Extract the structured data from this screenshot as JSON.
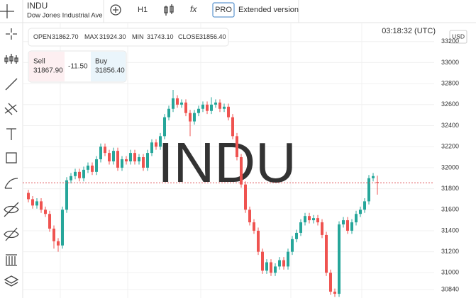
{
  "header": {
    "symbol": "INDU",
    "name": "Dow Jones Industrial Ave",
    "timeframe": "H1",
    "fx": "fx",
    "pro": "PRO",
    "extended": "Extended version"
  },
  "ohlc": {
    "open_label": "OPEN",
    "open": "31862.70",
    "max_label": "MAX",
    "max": "31924.30",
    "min_label": "MIN",
    "min": "31743.10",
    "close_label": "CLOSE",
    "close": "31856.40"
  },
  "trade": {
    "sell_label": "Sell",
    "sell": "31867.90",
    "spread": "-11.50",
    "buy_label": "Buy",
    "buy": "31856.40"
  },
  "clock": "03:18:32 (UTC)",
  "chart_data": {
    "type": "candlestick",
    "watermark": "INDU",
    "currency": "USD",
    "up_color": "#26a69a",
    "down_color": "#ef5350",
    "grid": true,
    "ylim": [
      30760,
      33380
    ],
    "yticks": [
      30840,
      31000,
      31200,
      31400,
      31600,
      31800,
      32000,
      32200,
      32400,
      32600,
      32800,
      33000,
      33200
    ],
    "candles": [
      [
        31760,
        31790,
        31670,
        31700
      ],
      [
        31700,
        31730,
        31610,
        31640
      ],
      [
        31640,
        31710,
        31610,
        31680
      ],
      [
        31680,
        31710,
        31570,
        31600
      ],
      [
        31600,
        31630,
        31530,
        31560
      ],
      [
        31560,
        31590,
        31390,
        31420
      ],
      [
        31420,
        31450,
        31230,
        31300
      ],
      [
        31300,
        31330,
        31200,
        31260
      ],
      [
        31260,
        31630,
        31230,
        31600
      ],
      [
        31600,
        31910,
        31570,
        31880
      ],
      [
        31880,
        31950,
        31850,
        31920
      ],
      [
        31920,
        31990,
        31890,
        31960
      ],
      [
        31960,
        31990,
        31870,
        31900
      ],
      [
        31900,
        32010,
        31870,
        31980
      ],
      [
        31980,
        32050,
        31950,
        32020
      ],
      [
        32020,
        32050,
        31930,
        31960
      ],
      [
        31960,
        32110,
        31930,
        32080
      ],
      [
        32080,
        32230,
        32050,
        32200
      ],
      [
        32200,
        32230,
        32110,
        32140
      ],
      [
        32140,
        32170,
        32030,
        32060
      ],
      [
        32060,
        32190,
        32030,
        32160
      ],
      [
        32160,
        32190,
        31970,
        32000
      ],
      [
        32000,
        32110,
        31970,
        32080
      ],
      [
        32080,
        32110,
        32030,
        32060
      ],
      [
        32060,
        32170,
        32030,
        32140
      ],
      [
        32140,
        32170,
        32030,
        32060
      ],
      [
        32060,
        32130,
        32030,
        32100
      ],
      [
        32100,
        32130,
        31970,
        32000
      ],
      [
        32000,
        32170,
        31970,
        32140
      ],
      [
        32140,
        32270,
        32110,
        32240
      ],
      [
        32240,
        32270,
        32170,
        32200
      ],
      [
        32200,
        32330,
        32170,
        32300
      ],
      [
        32300,
        32510,
        32270,
        32480
      ],
      [
        32480,
        32590,
        32450,
        32560
      ],
      [
        32560,
        32740,
        32530,
        32660
      ],
      [
        32660,
        32690,
        32570,
        32600
      ],
      [
        32600,
        32650,
        32570,
        32620
      ],
      [
        32620,
        32650,
        32490,
        32520
      ],
      [
        32520,
        32550,
        32300,
        32440
      ],
      [
        32440,
        32550,
        32410,
        32520
      ],
      [
        32520,
        32590,
        32490,
        32560
      ],
      [
        32560,
        32630,
        32530,
        32600
      ],
      [
        32600,
        32630,
        32510,
        32540
      ],
      [
        32540,
        32670,
        32510,
        32600
      ],
      [
        32600,
        32650,
        32570,
        32620
      ],
      [
        32620,
        32650,
        32530,
        32560
      ],
      [
        32560,
        32610,
        32530,
        32580
      ],
      [
        32580,
        32610,
        32450,
        32480
      ],
      [
        32480,
        32510,
        32270,
        32300
      ],
      [
        32300,
        32330,
        32070,
        32100
      ],
      [
        32100,
        32130,
        31810,
        31840
      ],
      [
        31840,
        31870,
        31570,
        31600
      ],
      [
        31600,
        31630,
        31450,
        31480
      ],
      [
        31480,
        31510,
        31370,
        31400
      ],
      [
        31400,
        31430,
        31170,
        31200
      ],
      [
        31200,
        31230,
        30990,
        31020
      ],
      [
        31020,
        31130,
        30990,
        31100
      ],
      [
        31100,
        31130,
        30970,
        31000
      ],
      [
        31000,
        31090,
        30970,
        31060
      ],
      [
        31060,
        31150,
        31030,
        31120
      ],
      [
        31120,
        31150,
        31030,
        31060
      ],
      [
        31060,
        31230,
        31030,
        31200
      ],
      [
        31200,
        31350,
        31170,
        31320
      ],
      [
        31320,
        31410,
        31290,
        31380
      ],
      [
        31380,
        31510,
        31350,
        31480
      ],
      [
        31480,
        31570,
        31450,
        31540
      ],
      [
        31540,
        31570,
        31470,
        31500
      ],
      [
        31500,
        31550,
        31470,
        31520
      ],
      [
        31520,
        31550,
        31450,
        31480
      ],
      [
        31480,
        31510,
        31330,
        31360
      ],
      [
        31360,
        31390,
        30970,
        31000
      ],
      [
        31000,
        31030,
        30790,
        30820
      ],
      [
        30820,
        30850,
        30770,
        30800
      ],
      [
        30800,
        31490,
        30770,
        31460
      ],
      [
        31460,
        31530,
        31430,
        31500
      ],
      [
        31500,
        31530,
        31370,
        31400
      ],
      [
        31400,
        31510,
        31370,
        31480
      ],
      [
        31480,
        31590,
        31450,
        31560
      ],
      [
        31560,
        31630,
        31530,
        31600
      ],
      [
        31600,
        31710,
        31570,
        31680
      ],
      [
        31680,
        31930,
        31650,
        31900
      ],
      [
        31900,
        31950,
        31870,
        31920
      ],
      [
        31862.7,
        31924.3,
        31743.1,
        31856.4
      ]
    ]
  }
}
